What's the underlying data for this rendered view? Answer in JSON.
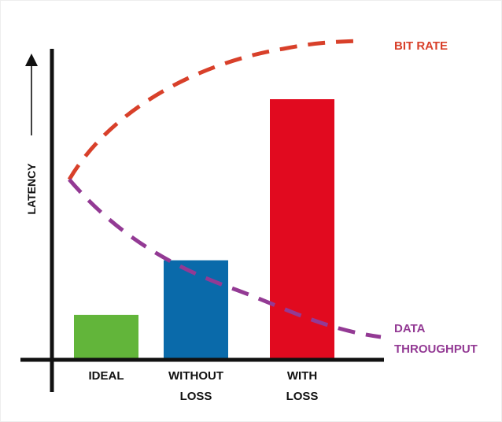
{
  "chart_data": {
    "type": "bar",
    "categories": [
      [
        "IDEAL"
      ],
      [
        "WITHOUT",
        "LOSS"
      ],
      [
        "WITH",
        "LOSS"
      ]
    ],
    "values": [
      17,
      38,
      100
    ],
    "colors": [
      "#62b53a",
      "#0a6aaa",
      "#e10a1f"
    ],
    "ylabel": "LATENCY",
    "ylim": [
      0,
      100
    ],
    "grid": false,
    "curves": [
      {
        "name_lines": [
          "BIT RATE"
        ],
        "color": "#d8402a",
        "style": "dashed"
      },
      {
        "name_lines": [
          "DATA",
          "THROUGHPUT"
        ],
        "color": "#933a94",
        "style": "dashed"
      }
    ]
  }
}
